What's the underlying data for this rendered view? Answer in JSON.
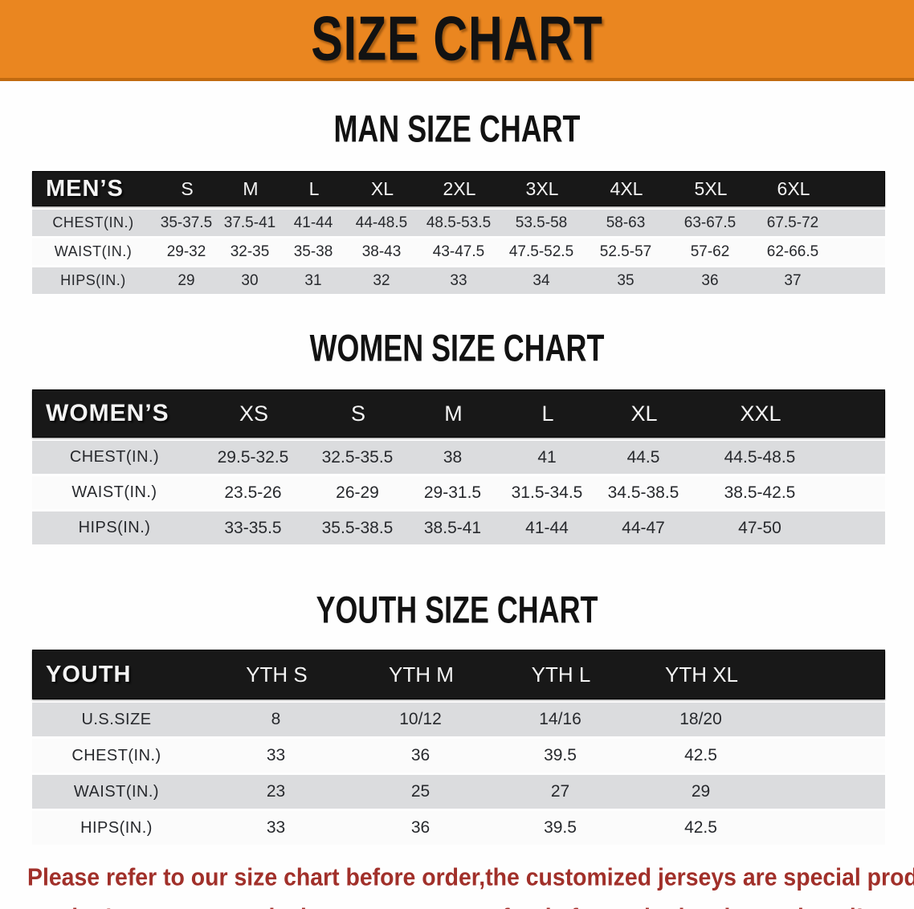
{
  "banner": {
    "title": "SIZE CHART"
  },
  "colors": {
    "banner_bg": "#EA8620",
    "banner_edge": "#C16A10",
    "header_bar_bg": "#181818",
    "row_gray": "#DBDCDE",
    "row_white": "#FBFBFB",
    "footer_red": "#A1302A"
  },
  "men": {
    "heading": "MAN SIZE CHART",
    "label": "MEN’S",
    "sizes": [
      "S",
      "M",
      "L",
      "XL",
      "2XL",
      "3XL",
      "4XL",
      "5XL",
      "6XL"
    ],
    "rows": [
      {
        "label": "CHEST(IN.)",
        "values": [
          "35-37.5",
          "37.5-41",
          "41-44",
          "44-48.5",
          "48.5-53.5",
          "53.5-58",
          "58-63",
          "63-67.5",
          "67.5-72"
        ]
      },
      {
        "label": "WAIST(IN.)",
        "values": [
          "29-32",
          "32-35",
          "35-38",
          "38-43",
          "43-47.5",
          "47.5-52.5",
          "52.5-57",
          "57-62",
          "62-66.5"
        ]
      },
      {
        "label": "HIPS(IN.)",
        "values": [
          "29",
          "30",
          "31",
          "32",
          "33",
          "34",
          "35",
          "36",
          "37"
        ]
      }
    ]
  },
  "women": {
    "heading": "WOMEN SIZE CHART",
    "label": "WOMEN’S",
    "sizes": [
      "XS",
      "S",
      "M",
      "L",
      "XL",
      "XXL"
    ],
    "rows": [
      {
        "label": "CHEST(IN.)",
        "values": [
          "29.5-32.5",
          "32.5-35.5",
          "38",
          "41",
          "44.5",
          "44.5-48.5"
        ]
      },
      {
        "label": "WAIST(IN.)",
        "values": [
          "23.5-26",
          "26-29",
          "29-31.5",
          "31.5-34.5",
          "34.5-38.5",
          "38.5-42.5"
        ]
      },
      {
        "label": "HIPS(IN.)",
        "values": [
          "33-35.5",
          "35.5-38.5",
          "38.5-41",
          "41-44",
          "44-47",
          "47-50"
        ]
      }
    ]
  },
  "youth": {
    "heading": "YOUTH SIZE CHART",
    "label": "YOUTH",
    "sizes": [
      "YTH S",
      "YTH M",
      "YTH L",
      "YTH XL"
    ],
    "rows": [
      {
        "label": "U.S.SIZE",
        "values": [
          "8",
          "10/12",
          "14/16",
          "18/20"
        ]
      },
      {
        "label": "CHEST(IN.)",
        "values": [
          "33",
          "36",
          "39.5",
          "42.5"
        ]
      },
      {
        "label": "WAIST(IN.)",
        "values": [
          "23",
          "25",
          "27",
          "29"
        ]
      },
      {
        "label": "HIPS(IN.)",
        "values": [
          "33",
          "36",
          "39.5",
          "42.5"
        ]
      }
    ]
  },
  "footer": {
    "line1": "Please refer to our size chart before order,the customized jerseys are special products,",
    "line2": "we don't accept cancel, change, teturn or refund after order has been placed!"
  }
}
